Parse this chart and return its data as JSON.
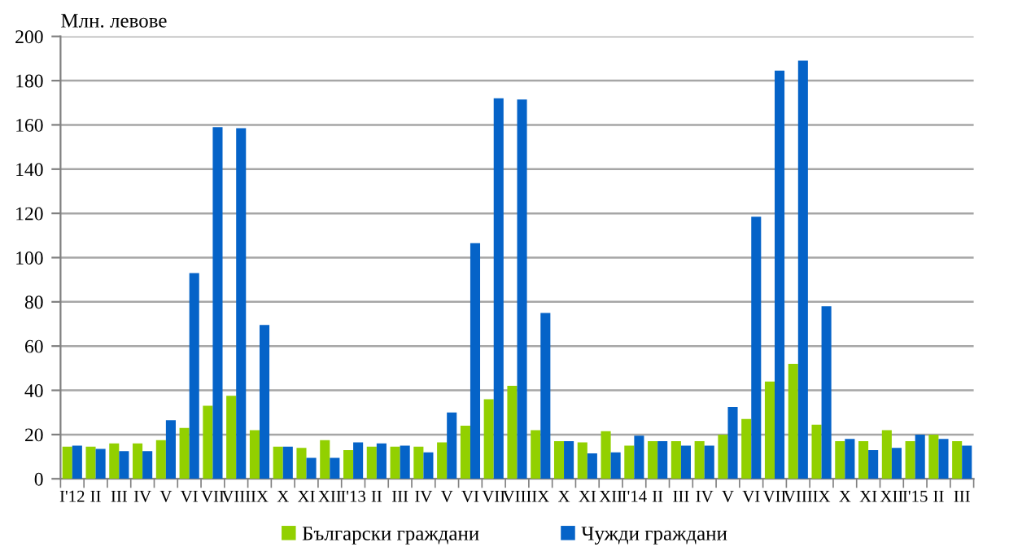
{
  "chart_data": {
    "type": "bar",
    "ylabel": "Млн. левове",
    "categories": [
      "I'12",
      "II",
      "III",
      "IV",
      "V",
      "VI",
      "VII",
      "VIII",
      "IX",
      "X",
      "XI",
      "XII",
      "I'13",
      "II",
      "III",
      "IV",
      "V",
      "VI",
      "VII",
      "VIII",
      "IX",
      "X",
      "XI",
      "XII",
      "I'14",
      "II",
      "III",
      "IV",
      "V",
      "VI",
      "VII",
      "VIII",
      "IX",
      "X",
      "XI",
      "XII",
      "I'15",
      "II",
      "III"
    ],
    "series": [
      {
        "name": "Български граждани",
        "color": "#92d000",
        "values": [
          14.5,
          14.5,
          16,
          16,
          17.5,
          23,
          33,
          37.5,
          22,
          14.5,
          14,
          17.5,
          13,
          14.5,
          14.5,
          14.5,
          16.5,
          24,
          36,
          42,
          22,
          17,
          16.5,
          21.5,
          15,
          17,
          17,
          17,
          20,
          27,
          44,
          52,
          24.5,
          17,
          17,
          22,
          17,
          20,
          17
        ]
      },
      {
        "name": "Чужди граждани",
        "color": "#0563c8",
        "values": [
          15,
          13.5,
          12.5,
          12.5,
          26.5,
          93,
          159,
          158.5,
          69.5,
          14.5,
          9.5,
          9.5,
          16.5,
          16,
          15,
          12,
          30,
          106.5,
          172,
          171.5,
          75,
          17,
          11.5,
          12,
          19.5,
          17,
          15,
          15,
          32.5,
          118.5,
          184.5,
          189,
          78,
          18,
          13,
          14,
          20,
          18,
          15
        ]
      }
    ],
    "ylim": [
      0,
      200
    ],
    "yticks": [
      0,
      20,
      40,
      60,
      80,
      100,
      120,
      140,
      160,
      180,
      200
    ],
    "grid": "y",
    "legend": "bottom"
  }
}
